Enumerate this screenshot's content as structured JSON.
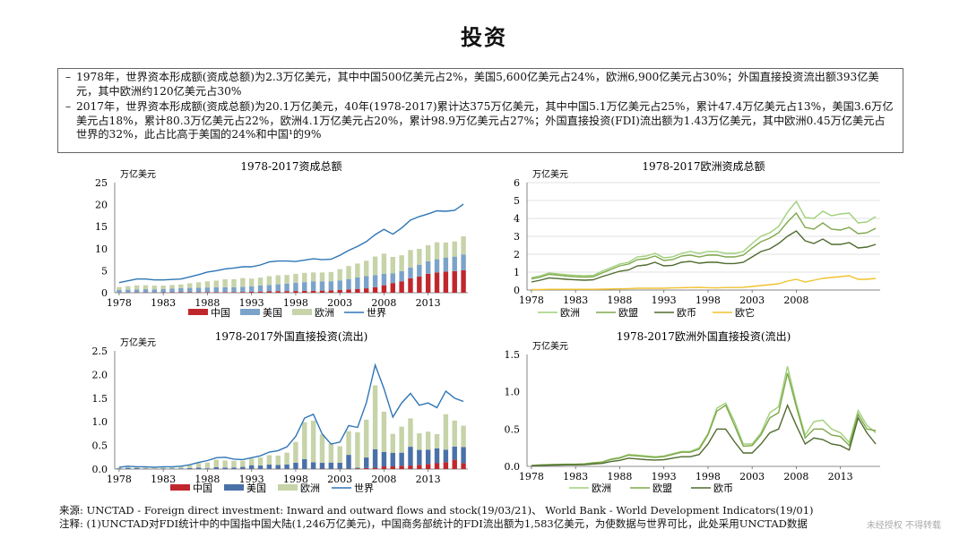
{
  "page_title": "投资",
  "bullets": [
    "1978年，世界资本形成额(资成总额)为2.3万亿美元，其中中国500亿美元占2%，美国5,600亿美元占24%，欧洲6,900亿美元占30%；外国直接投资流出额393亿美元，其中欧洲约120亿美元占30%",
    "2017年，世界资本形成额(资成总额)为20.1万亿美元，40年(1978-2017)累计达375万亿美元，其中中国5.1万亿美元占25%，累计47.4万亿美元占13%，美国3.6万亿美元占18%，累计80.3万亿美元占22%，欧洲4.1万亿美元占20%，累计98.9万亿美元占27%；外国直接投资(FDI)流出额为1.43万亿美元，其中欧洲0.45万亿美元占世界的32%，此占比高于美国的24%和中国¹的9%"
  ],
  "footer": {
    "source": "来源:  UNCTAD - Foreign direct investment: Inward and outward flows and stock(19/03/21)、 World Bank -  World Development Indicators(19/01)",
    "note": "注释: (1)UNCTAD对FDI统计中的中国指中国大陆(1,246万亿美元)，中国商务部统计的FDI流出额为1,583亿美元，为使数据与世界可比，此处采用UNCTAD数据"
  },
  "watermark": "未经授权 不得转载",
  "colors": {
    "china": "#c0272d",
    "us": "#7ba3c9",
    "us_dark": "#4a70a8",
    "europe": "#c7d3a8",
    "world": "#2e75b6",
    "eu_light": "#9fd07a",
    "eu_mid": "#7fa84a",
    "euro": "#4f6b2f",
    "other": "#f2c230"
  },
  "chart_data": [
    {
      "type": "bar",
      "title": "1978-2017资成总额",
      "ylabel": "万亿美元",
      "ylim": [
        0,
        25
      ],
      "yticks": [
        0,
        5,
        10,
        15,
        20,
        25
      ],
      "xticks": [
        "1978",
        "1983",
        "1988",
        "1993",
        "1998",
        "2003",
        "2008",
        "2013"
      ],
      "years": [
        1978,
        1979,
        1980,
        1981,
        1982,
        1983,
        1984,
        1985,
        1986,
        1987,
        1988,
        1989,
        1990,
        1991,
        1992,
        1993,
        1994,
        1995,
        1996,
        1997,
        1998,
        1999,
        2000,
        2001,
        2002,
        2003,
        2004,
        2005,
        2006,
        2007,
        2008,
        2009,
        2010,
        2011,
        2012,
        2013,
        2014,
        2015,
        2016,
        2017
      ],
      "legend": [
        "中国",
        "美国",
        "欧洲",
        "世界"
      ],
      "series": [
        {
          "name": "中国",
          "kind": "bar",
          "values": [
            0.05,
            0.06,
            0.07,
            0.07,
            0.07,
            0.08,
            0.09,
            0.11,
            0.11,
            0.12,
            0.14,
            0.14,
            0.13,
            0.14,
            0.17,
            0.23,
            0.26,
            0.31,
            0.35,
            0.37,
            0.39,
            0.41,
            0.44,
            0.48,
            0.53,
            0.63,
            0.75,
            0.87,
            1.0,
            1.25,
            1.7,
            2.2,
            2.6,
            3.3,
            3.7,
            4.3,
            4.6,
            4.8,
            4.9,
            5.1
          ]
        },
        {
          "name": "美国",
          "kind": "bar",
          "values": [
            0.56,
            0.63,
            0.66,
            0.73,
            0.7,
            0.73,
            0.87,
            0.95,
            0.98,
            1.0,
            1.05,
            1.12,
            1.12,
            1.08,
            1.14,
            1.23,
            1.37,
            1.44,
            1.56,
            1.71,
            1.85,
            2.0,
            2.16,
            2.12,
            2.08,
            2.17,
            2.36,
            2.6,
            2.76,
            2.77,
            2.63,
            2.23,
            2.3,
            2.44,
            2.66,
            2.83,
            3.0,
            3.2,
            3.3,
            3.6
          ]
        },
        {
          "name": "欧洲",
          "kind": "bar",
          "values": [
            0.69,
            0.8,
            0.95,
            0.9,
            0.85,
            0.82,
            0.8,
            0.82,
            1.05,
            1.25,
            1.4,
            1.5,
            1.8,
            1.85,
            2.0,
            1.75,
            1.8,
            2.0,
            2.05,
            1.95,
            2.05,
            2.1,
            2.0,
            2.0,
            2.1,
            2.55,
            2.95,
            3.15,
            3.5,
            4.2,
            4.55,
            3.7,
            3.6,
            3.95,
            3.6,
            3.65,
            3.85,
            3.4,
            3.45,
            4.1
          ]
        },
        {
          "name": "世界",
          "kind": "line",
          "values": [
            2.3,
            2.7,
            3.1,
            3.1,
            2.9,
            2.9,
            3.0,
            3.1,
            3.6,
            4.1,
            4.7,
            5.0,
            5.4,
            5.6,
            5.9,
            5.9,
            6.3,
            7.0,
            7.2,
            7.2,
            7.1,
            7.4,
            7.7,
            7.5,
            7.6,
            8.5,
            9.6,
            10.5,
            11.6,
            13.2,
            14.4,
            13.3,
            14.7,
            16.5,
            17.3,
            17.9,
            18.6,
            18.5,
            18.7,
            20.1
          ]
        }
      ]
    },
    {
      "type": "line",
      "title": "1978-2017欧洲资成总额",
      "ylabel": "万亿美元",
      "ylim": [
        0,
        6
      ],
      "yticks": [
        0,
        1,
        2,
        3,
        4,
        5,
        6
      ],
      "xticks": [
        "1978",
        "1983",
        "1988",
        "1993",
        "1998",
        "2003",
        "2008"
      ],
      "years": [
        1978,
        1979,
        1980,
        1981,
        1982,
        1983,
        1984,
        1985,
        1986,
        1987,
        1988,
        1989,
        1990,
        1991,
        1992,
        1993,
        1994,
        1995,
        1996,
        1997,
        1998,
        1999,
        2000,
        2001,
        2002,
        2003,
        2004,
        2005,
        2006,
        2007,
        2008,
        2009,
        2010,
        2011,
        2012,
        2013,
        2014,
        2015,
        2016,
        2017
      ],
      "legend": [
        "欧洲",
        "欧盟",
        "欧币",
        "欧它"
      ],
      "series": [
        {
          "name": "欧洲",
          "values": [
            0.69,
            0.8,
            0.95,
            0.9,
            0.85,
            0.82,
            0.8,
            0.82,
            1.05,
            1.25,
            1.45,
            1.55,
            1.85,
            1.9,
            2.05,
            1.8,
            1.85,
            2.05,
            2.15,
            2.05,
            2.15,
            2.15,
            2.05,
            2.05,
            2.15,
            2.6,
            3.0,
            3.2,
            3.55,
            4.35,
            4.95,
            4.05,
            4.0,
            4.4,
            4.15,
            4.25,
            4.3,
            3.75,
            3.8,
            4.1
          ]
        },
        {
          "name": "欧盟",
          "values": [
            0.62,
            0.72,
            0.88,
            0.83,
            0.78,
            0.74,
            0.72,
            0.74,
            0.95,
            1.15,
            1.35,
            1.45,
            1.7,
            1.75,
            1.9,
            1.65,
            1.7,
            1.9,
            1.95,
            1.85,
            1.95,
            1.95,
            1.85,
            1.85,
            1.95,
            2.35,
            2.7,
            2.9,
            3.2,
            3.8,
            4.3,
            3.5,
            3.4,
            3.75,
            3.4,
            3.35,
            3.5,
            3.15,
            3.2,
            3.45
          ]
        },
        {
          "name": "欧币",
          "values": [
            0.45,
            0.55,
            0.68,
            0.64,
            0.6,
            0.57,
            0.55,
            0.57,
            0.75,
            0.9,
            1.05,
            1.12,
            1.35,
            1.4,
            1.55,
            1.35,
            1.38,
            1.55,
            1.6,
            1.5,
            1.55,
            1.55,
            1.48,
            1.48,
            1.55,
            1.85,
            2.15,
            2.3,
            2.6,
            3.0,
            3.3,
            2.75,
            2.6,
            2.85,
            2.55,
            2.55,
            2.65,
            2.35,
            2.4,
            2.55
          ]
        },
        {
          "name": "欧它",
          "values": [
            0.03,
            0.03,
            0.04,
            0.04,
            0.04,
            0.04,
            0.04,
            0.04,
            0.05,
            0.06,
            0.07,
            0.08,
            0.1,
            0.1,
            0.1,
            0.1,
            0.12,
            0.13,
            0.14,
            0.15,
            0.13,
            0.12,
            0.14,
            0.14,
            0.15,
            0.2,
            0.25,
            0.3,
            0.35,
            0.5,
            0.6,
            0.45,
            0.55,
            0.65,
            0.7,
            0.75,
            0.8,
            0.6,
            0.6,
            0.65
          ]
        }
      ]
    },
    {
      "type": "bar",
      "title": "1978-2017外国直接投资(流出)",
      "ylabel": "万亿美元",
      "ylim": [
        0,
        2.5
      ],
      "yticks": [
        0,
        0.5,
        1.0,
        1.5,
        2.0,
        2.5
      ],
      "yticklabels": [
        "0.0",
        "0.5",
        "1.0",
        "1.5",
        "2.0",
        "2.5"
      ],
      "xticks": [
        "1978",
        "1983",
        "1988",
        "1993",
        "1998",
        "2003",
        "2008",
        "2013"
      ],
      "years": [
        1978,
        1979,
        1980,
        1981,
        1982,
        1983,
        1984,
        1985,
        1986,
        1987,
        1988,
        1989,
        1990,
        1991,
        1992,
        1993,
        1994,
        1995,
        1996,
        1997,
        1998,
        1999,
        2000,
        2001,
        2002,
        2003,
        2004,
        2005,
        2006,
        2007,
        2008,
        2009,
        2010,
        2011,
        2012,
        2013,
        2014,
        2015,
        2016,
        2017
      ],
      "legend": [
        "中国",
        "美国",
        "欧洲",
        "世界"
      ],
      "series": [
        {
          "name": "中国",
          "kind": "bar",
          "values": [
            0,
            0,
            0,
            0,
            0,
            0,
            0,
            0.001,
            0.001,
            0.001,
            0.001,
            0.001,
            0.001,
            0.001,
            0.004,
            0.004,
            0.002,
            0.002,
            0.002,
            0.003,
            0.003,
            0.002,
            0.001,
            0.007,
            0.003,
            0.003,
            0.006,
            0.012,
            0.021,
            0.027,
            0.056,
            0.057,
            0.069,
            0.075,
            0.088,
            0.108,
            0.123,
            0.146,
            0.196,
            0.125
          ]
        },
        {
          "name": "美国",
          "kind": "bar",
          "values": [
            0.016,
            0.025,
            0.019,
            0.01,
            0.005,
            0.012,
            0.013,
            0.013,
            0.018,
            0.03,
            0.016,
            0.037,
            0.031,
            0.033,
            0.042,
            0.078,
            0.073,
            0.092,
            0.084,
            0.095,
            0.131,
            0.209,
            0.143,
            0.125,
            0.135,
            0.13,
            0.295,
            0.016,
            0.224,
            0.393,
            0.308,
            0.288,
            0.278,
            0.397,
            0.318,
            0.303,
            0.317,
            0.265,
            0.281,
            0.342
          ]
        },
        {
          "name": "欧洲",
          "kind": "bar",
          "values": [
            0.012,
            0.02,
            0.025,
            0.028,
            0.03,
            0.03,
            0.035,
            0.05,
            0.06,
            0.1,
            0.12,
            0.16,
            0.15,
            0.14,
            0.13,
            0.14,
            0.17,
            0.2,
            0.2,
            0.25,
            0.44,
            0.78,
            0.88,
            0.6,
            0.4,
            0.35,
            0.5,
            0.75,
            0.8,
            1.35,
            0.85,
            0.4,
            0.55,
            0.6,
            0.35,
            0.38,
            0.3,
            0.75,
            0.55,
            0.45
          ]
        },
        {
          "name": "世界",
          "kind": "line",
          "values": [
            0.04,
            0.06,
            0.05,
            0.05,
            0.04,
            0.05,
            0.05,
            0.06,
            0.09,
            0.14,
            0.18,
            0.24,
            0.25,
            0.21,
            0.2,
            0.24,
            0.28,
            0.36,
            0.39,
            0.47,
            0.69,
            1.08,
            1.16,
            0.74,
            0.53,
            0.57,
            0.92,
            0.88,
            1.4,
            2.2,
            1.7,
            1.1,
            1.4,
            1.6,
            1.35,
            1.4,
            1.3,
            1.65,
            1.5,
            1.43
          ]
        }
      ]
    },
    {
      "type": "line",
      "title": "1978-2017欧洲外国直接投资(流出)",
      "ylabel": "万亿美元",
      "ylim": [
        0,
        1.5
      ],
      "yticks": [
        0,
        0.5,
        1.0,
        1.5
      ],
      "yticklabels": [
        "0.0",
        "0.5",
        "1.0",
        "1.5"
      ],
      "xticks": [
        "1978",
        "1983",
        "1988",
        "1993",
        "1998",
        "2003",
        "2008",
        "2013"
      ],
      "years": [
        1978,
        1979,
        1980,
        1981,
        1982,
        1983,
        1984,
        1985,
        1986,
        1987,
        1988,
        1989,
        1990,
        1991,
        1992,
        1993,
        1994,
        1995,
        1996,
        1997,
        1998,
        1999,
        2000,
        2001,
        2002,
        2003,
        2004,
        2005,
        2006,
        2007,
        2008,
        2009,
        2010,
        2011,
        2012,
        2013,
        2014,
        2015,
        2016,
        2017
      ],
      "legend": [
        "欧洲",
        "欧盟",
        "欧币"
      ],
      "series": [
        {
          "name": "欧洲",
          "values": [
            0.012,
            0.02,
            0.025,
            0.028,
            0.03,
            0.03,
            0.035,
            0.05,
            0.06,
            0.1,
            0.12,
            0.16,
            0.15,
            0.14,
            0.13,
            0.14,
            0.17,
            0.2,
            0.2,
            0.25,
            0.44,
            0.78,
            0.85,
            0.6,
            0.3,
            0.3,
            0.45,
            0.72,
            0.8,
            1.34,
            0.85,
            0.42,
            0.6,
            0.62,
            0.5,
            0.45,
            0.32,
            0.75,
            0.55,
            0.45
          ]
        },
        {
          "name": "欧盟",
          "values": [
            0.011,
            0.018,
            0.023,
            0.026,
            0.028,
            0.028,
            0.032,
            0.046,
            0.055,
            0.093,
            0.11,
            0.15,
            0.14,
            0.13,
            0.12,
            0.13,
            0.16,
            0.19,
            0.19,
            0.23,
            0.42,
            0.74,
            0.82,
            0.55,
            0.27,
            0.28,
            0.42,
            0.65,
            0.72,
            1.25,
            0.8,
            0.38,
            0.5,
            0.5,
            0.42,
            0.4,
            0.28,
            0.7,
            0.5,
            0.48
          ]
        },
        {
          "name": "欧币",
          "values": [
            0.008,
            0.013,
            0.016,
            0.018,
            0.02,
            0.02,
            0.023,
            0.032,
            0.04,
            0.065,
            0.08,
            0.11,
            0.1,
            0.09,
            0.085,
            0.09,
            0.11,
            0.13,
            0.13,
            0.16,
            0.3,
            0.5,
            0.5,
            0.33,
            0.18,
            0.18,
            0.3,
            0.45,
            0.5,
            0.82,
            0.55,
            0.3,
            0.38,
            0.36,
            0.3,
            0.28,
            0.22,
            0.65,
            0.45,
            0.3
          ]
        }
      ]
    }
  ]
}
